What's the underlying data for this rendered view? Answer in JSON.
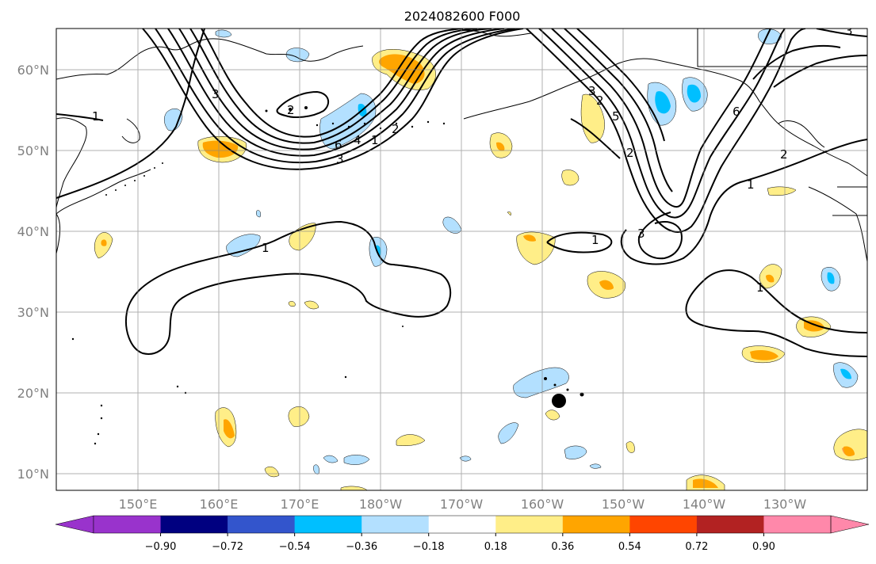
{
  "title": "2024082600 F000",
  "axes": {
    "lat_labels": [
      "10°N",
      "20°N",
      "30°N",
      "40°N",
      "50°N",
      "60°N"
    ],
    "lon_labels": [
      "150°E",
      "160°E",
      "170°E",
      "180°W",
      "170°W",
      "160°W",
      "150°W",
      "140°W",
      "130°W"
    ]
  },
  "contour_labels": [
    "1",
    "3",
    "2",
    "6",
    "4",
    "2",
    "3",
    "1",
    "1",
    "3",
    "5",
    "2",
    "6",
    "2",
    "3",
    "1",
    "1",
    "1",
    "2",
    "3"
  ],
  "colorbar": {
    "ticks": [
      "−0.90",
      "−0.72",
      "−0.54",
      "−0.36",
      "−0.18",
      "0.18",
      "0.36",
      "0.54",
      "0.72",
      "0.90"
    ],
    "colors": [
      "#9933cc",
      "#000080",
      "#3355cc",
      "#00bfff",
      "#b3e0ff",
      "#ffffff",
      "#ffee88",
      "#ffa500",
      "#ff4500",
      "#b22222",
      "#ff88aa"
    ]
  }
}
